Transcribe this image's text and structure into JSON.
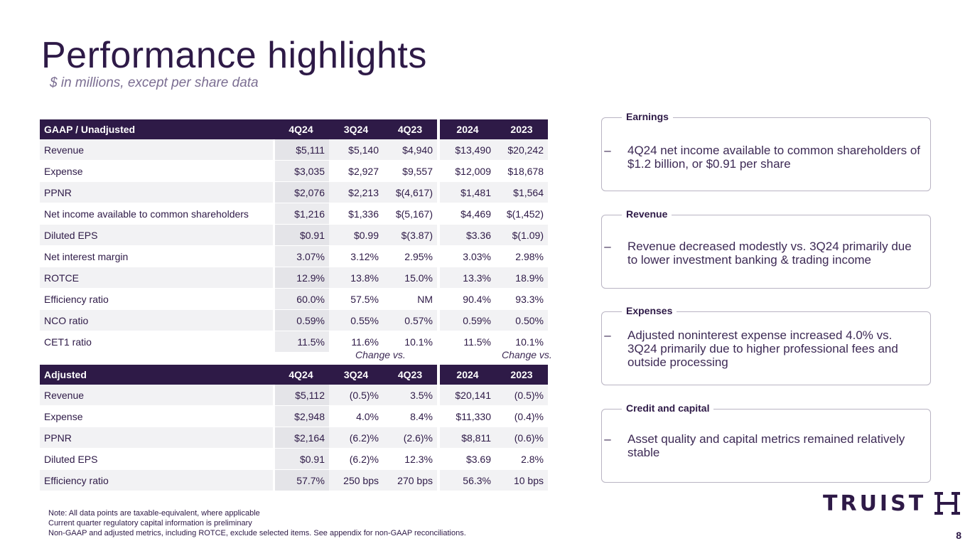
{
  "page": {
    "title": "Performance highlights",
    "subtitle": "$ in millions, except per share data",
    "page_number": "8"
  },
  "gaap": {
    "headers": [
      "GAAP / Unadjusted",
      "4Q24",
      "3Q24",
      "4Q23",
      "2024",
      "2023"
    ],
    "rows": [
      [
        "Revenue",
        "$5,111",
        "$5,140",
        "$4,940",
        "$13,490",
        "$20,242"
      ],
      [
        "Expense",
        "$3,035",
        "$2,927",
        "$9,557",
        "$12,009",
        "$18,678"
      ],
      [
        "PPNR",
        "$2,076",
        "$2,213",
        "$(4,617)",
        "$1,481",
        "$1,564"
      ],
      [
        "Net income available to common shareholders",
        "$1,216",
        "$1,336",
        "$(5,167)",
        "$4,469",
        "$(1,452)"
      ],
      [
        "Diluted EPS",
        "$0.91",
        "$0.99",
        "$(3.87)",
        "$3.36",
        "$(1.09)"
      ],
      [
        "Net interest margin",
        "3.07%",
        "3.12%",
        "2.95%",
        "3.03%",
        "2.98%"
      ],
      [
        "ROTCE",
        "12.9%",
        "13.8%",
        "15.0%",
        "13.3%",
        "18.9%"
      ],
      [
        "Efficiency ratio",
        "60.0%",
        "57.5%",
        "NM",
        "90.4%",
        "93.3%"
      ],
      [
        "NCO ratio",
        "0.59%",
        "0.55%",
        "0.57%",
        "0.59%",
        "0.50%"
      ],
      [
        "CET1 ratio",
        "11.5%",
        "11.6%",
        "10.1%",
        "11.5%",
        "10.1%"
      ]
    ]
  },
  "change_vs_label": "Change vs.",
  "adjusted": {
    "headers": [
      "Adjusted",
      "4Q24",
      "3Q24",
      "4Q23",
      "2024",
      "2023"
    ],
    "rows": [
      [
        "Revenue",
        "$5,112",
        "(0.5)%",
        "3.5%",
        "$20,141",
        "(0.5)%"
      ],
      [
        "Expense",
        "$2,948",
        "4.0%",
        "8.4%",
        "$11,330",
        "(0.4)%"
      ],
      [
        "PPNR",
        "$2,164",
        "(6.2)%",
        "(2.6)%",
        "$8,811",
        "(0.6)%"
      ],
      [
        "Diluted EPS",
        "$0.91",
        "(6.2)%",
        "12.3%",
        "$3.69",
        "2.8%"
      ],
      [
        "Efficiency ratio",
        "57.7%",
        "250 bps",
        "270 bps",
        "56.3%",
        "10 bps"
      ]
    ]
  },
  "cards": [
    {
      "heading": "Earnings",
      "bullet": "4Q24 net income available to common shareholders of $1.2 billion, or $0.91 per share"
    },
    {
      "heading": "Revenue",
      "bullet": "Revenue decreased modestly vs. 3Q24 primarily due to lower investment banking & trading income"
    },
    {
      "heading": "Expenses",
      "bullet": "Adjusted noninterest expense increased 4.0% vs. 3Q24 primarily due to higher professional fees and outside processing"
    },
    {
      "heading": "Credit and capital",
      "bullet": "Asset quality and capital metrics remained relatively stable"
    }
  ],
  "bullet_marker": "–",
  "notes": [
    "Note: All data points are taxable-equivalent, where applicable",
    "Current quarter regulatory capital information is preliminary",
    "Non-GAAP and adjusted metrics, including ROTCE, exclude selected items.  See appendix for non-GAAP reconciliations."
  ],
  "logo": {
    "text": "TRUIST"
  },
  "colors": {
    "brand": "#2e1a47",
    "row_alt": "#f2f2f4",
    "border": "#b9b4c3"
  }
}
